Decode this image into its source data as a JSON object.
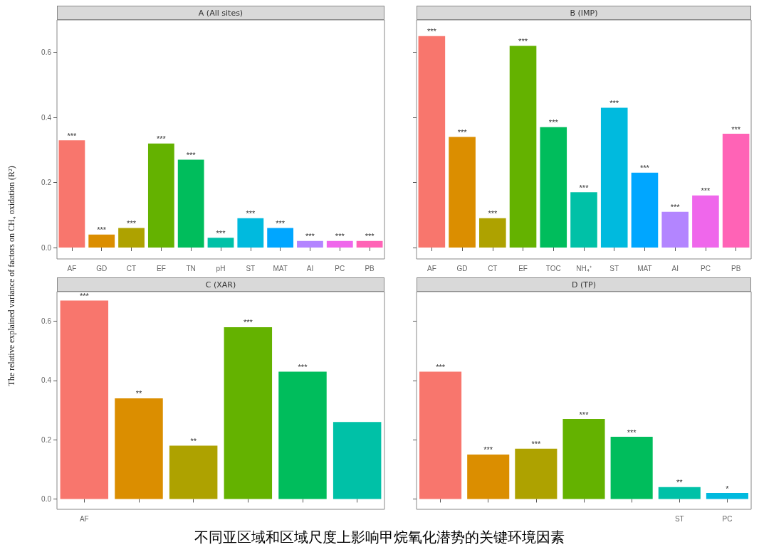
{
  "chart_data": [
    {
      "type": "bar",
      "title": "A (All sites)",
      "ylabel": "The relative explained variance of factors on CH₄ oxidation (R²)",
      "categories": [
        "AF",
        "GD",
        "CT",
        "EF",
        "TN",
        "pH",
        "ST",
        "MAT",
        "AI",
        "PC",
        "PB"
      ],
      "values": [
        0.33,
        0.04,
        0.06,
        0.32,
        0.27,
        0.03,
        0.09,
        0.06,
        0.02,
        0.02,
        0.02
      ],
      "colors": [
        "#f8766d",
        "#db8e00",
        "#aea200",
        "#64b200",
        "#00bd5c",
        "#00c1a7",
        "#00bade",
        "#00a6ff",
        "#b385ff",
        "#ef67eb",
        "#ff63b6"
      ],
      "value_labels": [
        "***",
        "***",
        "***",
        "***",
        "***",
        "***",
        "***",
        "***",
        "***",
        "***",
        "***"
      ],
      "ylim": [
        -0.035,
        0.7
      ],
      "yticks": [
        {
          "value": 0,
          "label": "0.0"
        },
        {
          "value": 0.2,
          "label": "0.2"
        },
        {
          "value": 0.4,
          "label": "0.4"
        },
        {
          "value": 0.6,
          "label": "0.6"
        }
      ]
    },
    {
      "type": "bar",
      "title": "B (IMP)",
      "categories": [
        "AF",
        "GD",
        "CT",
        "EF",
        "TOC",
        "NH₄⁺",
        "ST",
        "MAT",
        "AI",
        "PC",
        "PB"
      ],
      "values": [
        0.65,
        0.34,
        0.09,
        0.62,
        0.37,
        0.17,
        0.43,
        0.23,
        0.11,
        0.16,
        0.35
      ],
      "colors": [
        "#f8766d",
        "#db8e00",
        "#aea200",
        "#64b200",
        "#00bd5c",
        "#00c1a7",
        "#00bade",
        "#00a6ff",
        "#b385ff",
        "#ef67eb",
        "#ff63b6"
      ],
      "value_labels": [
        "***",
        "***",
        "***",
        "***",
        "***",
        "***",
        "***",
        "***",
        "***",
        "***",
        "***"
      ],
      "ylim": [
        -0.035,
        0.7
      ],
      "yticks": [
        0,
        0.2,
        0.4,
        0.6
      ],
      "tick_labels": "x"
    },
    {
      "type": "bar",
      "title": "C (XAR)",
      "categories": [
        "AF",
        null,
        null,
        null,
        null,
        null
      ],
      "values": [
        0.67,
        0.34,
        0.18,
        0.58,
        0.43,
        0.26
      ],
      "colors": [
        "#f8766d",
        "#db8e00",
        "#aea200",
        "#64b200",
        "#00bd5c",
        "#00c1a7"
      ],
      "value_labels": [
        "***",
        "**",
        "**",
        "***",
        "***",
        null
      ],
      "ylim": [
        -0.035,
        0.7
      ],
      "yticks": [
        {
          "value": 0,
          "label": "0.0"
        },
        {
          "value": 0.2,
          "label": "0.2"
        },
        {
          "value": 0.4,
          "label": "0.4"
        },
        {
          "value": 0.6,
          "label": "0.6"
        }
      ]
    },
    {
      "type": "bar",
      "title": "D (TP)",
      "categories": [
        null,
        null,
        null,
        null,
        null,
        "ST",
        "PC"
      ],
      "values": [
        0.43,
        0.15,
        0.17,
        0.27,
        0.21,
        0.04,
        0.02
      ],
      "colors": [
        "#f8766d",
        "#db8e00",
        "#aea200",
        "#64b200",
        "#00bd5c",
        "#00c1a7",
        "#00bade"
      ],
      "value_labels": [
        "***",
        "***",
        "***",
        "***",
        "***",
        "**",
        "*"
      ],
      "ylim": [
        -0.035,
        0.7
      ],
      "yticks": [
        0,
        0.2,
        0.4,
        0.6
      ],
      "tick_labels": "x",
      "annotations": [
        "不同亚区域和区域尺度上影响甲烷氧化潜势的关键环境因素"
      ]
    }
  ]
}
